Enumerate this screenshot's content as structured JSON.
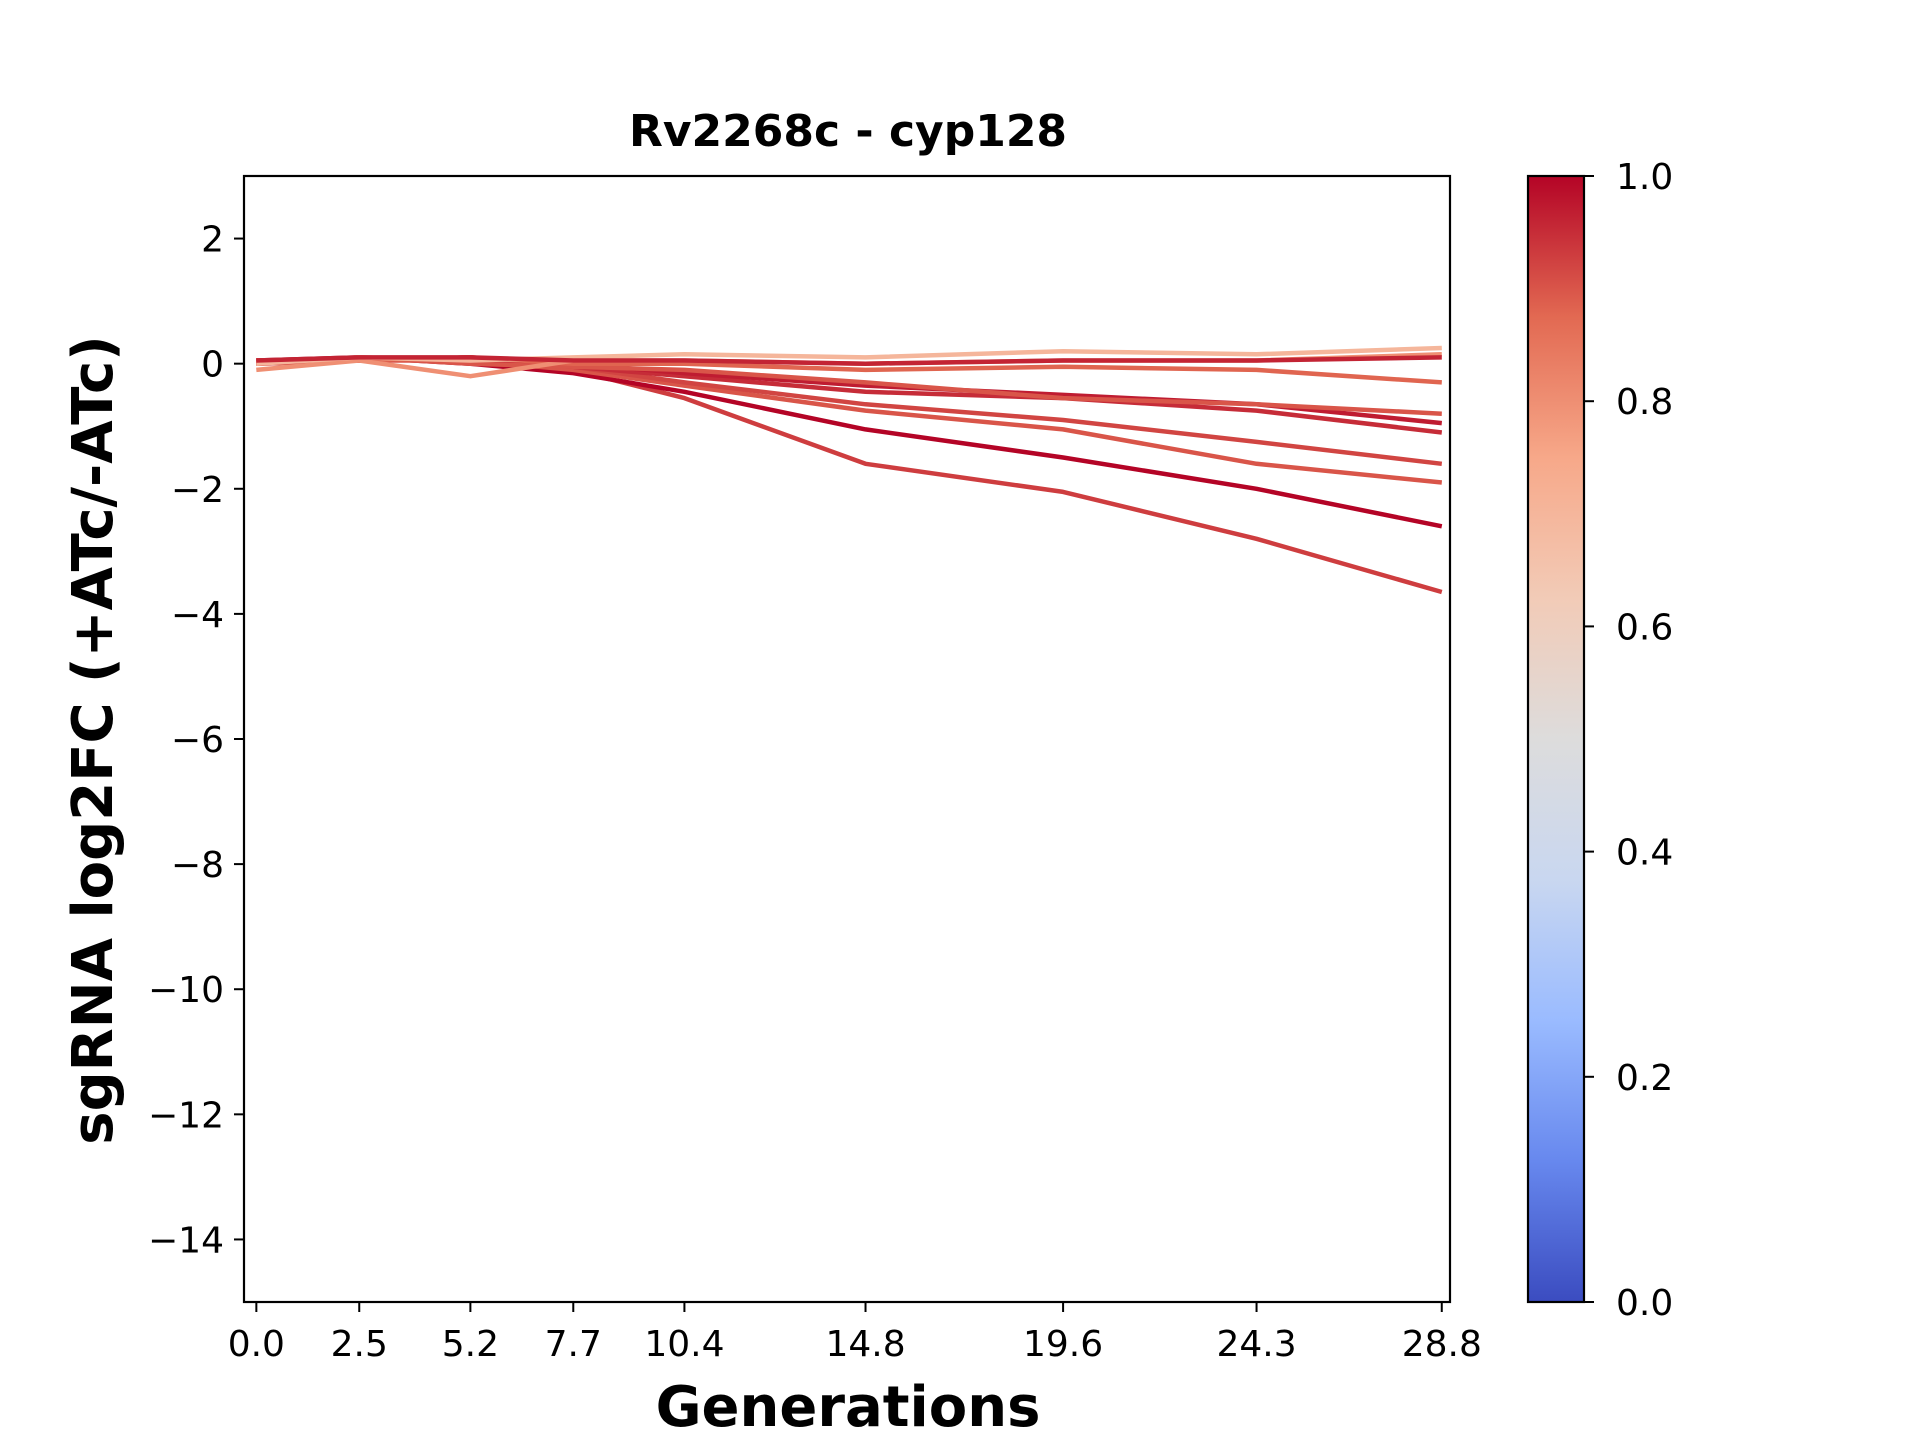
{
  "chart_data": {
    "type": "line",
    "title": "Rv2268c - cyp128",
    "xlabel": "Generations",
    "ylabel": "sgRNA log2FC (+ATc/-ATc)",
    "x": [
      0.0,
      2.5,
      5.2,
      7.7,
      10.4,
      14.8,
      19.6,
      24.3,
      28.8
    ],
    "x_tick_labels": [
      "0.0",
      "2.5",
      "5.2",
      "7.7",
      "10.4",
      "14.8",
      "19.6",
      "24.3",
      "28.8"
    ],
    "xlim": [
      -0.3,
      29.0
    ],
    "ylim": [
      -15,
      3
    ],
    "y_ticks": [
      2,
      0,
      -2,
      -4,
      -6,
      -8,
      -10,
      -12,
      -14
    ],
    "y_tick_labels": [
      "2",
      "0",
      "−2",
      "−4",
      "−6",
      "−8",
      "−10",
      "−12",
      "−14"
    ],
    "grid": false,
    "colorbar": {
      "colormap": "coolwarm",
      "range": [
        0.0,
        1.0
      ],
      "ticks": [
        0.0,
        0.2,
        0.4,
        0.6,
        0.8,
        1.0
      ],
      "tick_labels": [
        "0.0",
        "0.2",
        "0.4",
        "0.6",
        "0.8",
        "1.0"
      ],
      "stops": [
        "#3b4cc0",
        "#6788ee",
        "#9abbff",
        "#c9d7f0",
        "#dddcdc",
        "#f2cbb7",
        "#f7a889",
        "#e26952",
        "#b40426"
      ]
    },
    "series": [
      {
        "color_value": 0.93,
        "values": [
          0.0,
          0.05,
          0.1,
          -0.1,
          -0.55,
          -1.6,
          -2.05,
          -2.8,
          -3.65
        ]
      },
      {
        "color_value": 1.0,
        "values": [
          0.05,
          0.1,
          0.0,
          -0.15,
          -0.45,
          -1.05,
          -1.5,
          -2.0,
          -2.6
        ]
      },
      {
        "color_value": 0.9,
        "values": [
          0.0,
          0.05,
          0.05,
          -0.1,
          -0.35,
          -0.75,
          -1.05,
          -1.6,
          -1.9
        ]
      },
      {
        "color_value": 0.92,
        "values": [
          0.05,
          0.05,
          0.1,
          -0.05,
          -0.3,
          -0.65,
          -0.9,
          -1.25,
          -1.6
        ]
      },
      {
        "color_value": 0.95,
        "values": [
          0.0,
          0.1,
          0.05,
          -0.05,
          -0.2,
          -0.45,
          -0.55,
          -0.75,
          -1.1
        ]
      },
      {
        "color_value": 0.97,
        "values": [
          0.05,
          0.05,
          0.1,
          0.0,
          -0.15,
          -0.35,
          -0.5,
          -0.65,
          -0.95
        ]
      },
      {
        "color_value": 0.9,
        "values": [
          0.0,
          0.1,
          0.0,
          -0.05,
          -0.1,
          -0.3,
          -0.55,
          -0.65,
          -0.8
        ]
      },
      {
        "color_value": 0.88,
        "values": [
          0.05,
          0.05,
          0.1,
          0.0,
          0.0,
          -0.1,
          -0.05,
          -0.1,
          -0.3
        ]
      },
      {
        "color_value": 0.8,
        "values": [
          -0.1,
          0.05,
          -0.2,
          0.05,
          0.05,
          0.0,
          0.05,
          0.05,
          0.15
        ]
      },
      {
        "color_value": 0.7,
        "values": [
          0.0,
          0.1,
          0.05,
          0.1,
          0.15,
          0.1,
          0.2,
          0.15,
          0.25
        ]
      },
      {
        "color_value": 0.96,
        "values": [
          0.05,
          0.1,
          0.1,
          0.05,
          0.05,
          0.0,
          0.05,
          0.05,
          0.1
        ]
      }
    ]
  }
}
